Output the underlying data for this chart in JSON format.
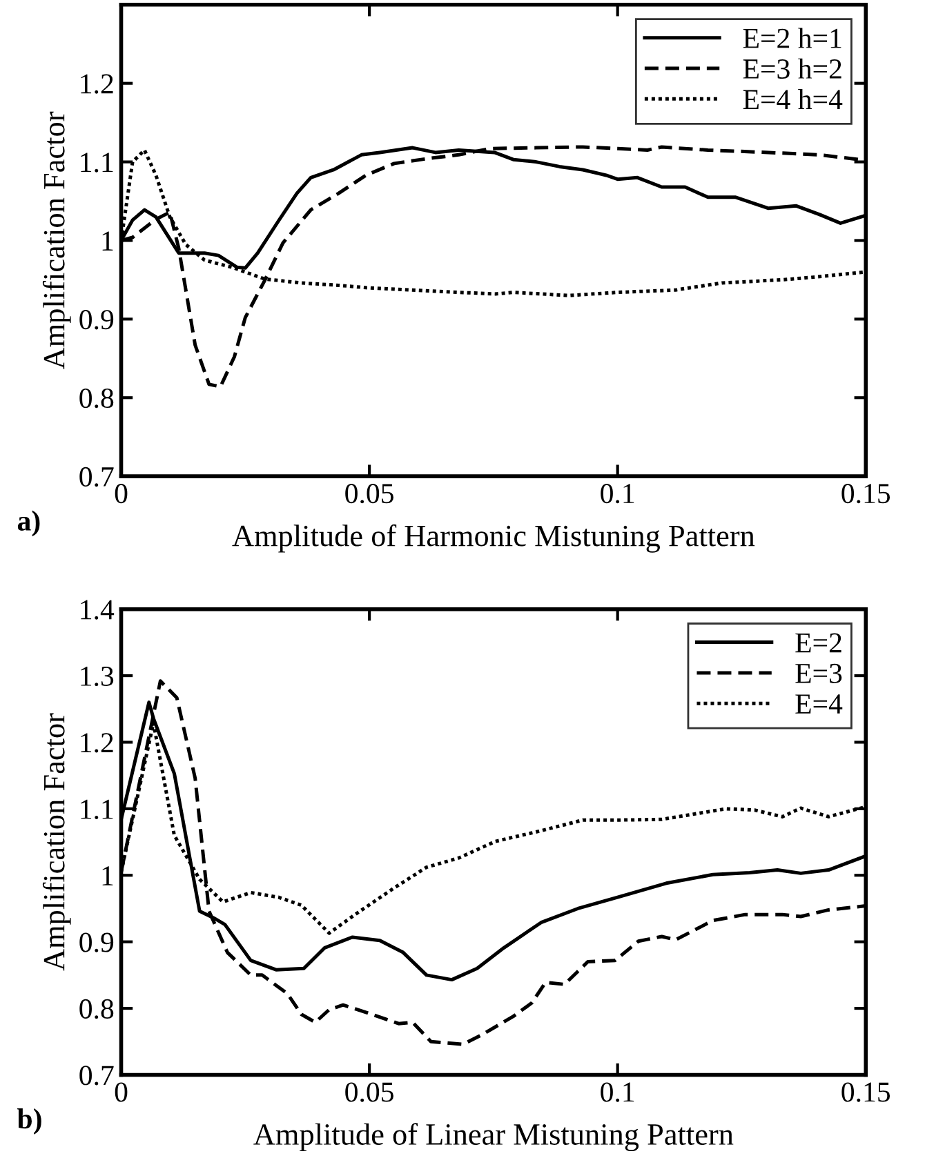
{
  "chart_data": [
    {
      "type": "line",
      "xlabel": "Amplitude of Harmonic Mistuning Pattern",
      "ylabel": "Amplification Factor",
      "annotations": [
        "a)"
      ],
      "xlim": [
        0,
        0.15
      ],
      "xticks": [
        0,
        0.05,
        0.1,
        0.15
      ],
      "ylim": [
        0.7,
        1.3
      ],
      "yticks": [
        0.7,
        0.8,
        0.9,
        1,
        1.1,
        1.2
      ],
      "legend": "top right",
      "grid": false,
      "series": [
        {
          "name": "E=2 h=1",
          "color": "#000000",
          "line_style": "solid",
          "x": [
            0,
            0.0023,
            0.0047,
            0.007,
            0.0116,
            0.0168,
            0.0196,
            0.0233,
            0.025,
            0.0275,
            0.0317,
            0.0354,
            0.0382,
            0.0428,
            0.0484,
            0.0521,
            0.0587,
            0.0633,
            0.068,
            0.0752,
            0.079,
            0.0836,
            0.0883,
            0.093,
            0.0977,
            0.1,
            0.104,
            0.1089,
            0.1136,
            0.1182,
            0.1238,
            0.1304,
            0.136,
            0.1407,
            0.1449,
            0.15
          ],
          "values": [
            1.0,
            1.026,
            1.039,
            1.03,
            0.984,
            0.984,
            0.981,
            0.966,
            0.965,
            0.984,
            1.025,
            1.06,
            1.08,
            1.09,
            1.109,
            1.112,
            1.118,
            1.112,
            1.115,
            1.112,
            1.103,
            1.1,
            1.094,
            1.09,
            1.083,
            1.078,
            1.08,
            1.068,
            1.068,
            1.055,
            1.055,
            1.041,
            1.044,
            1.033,
            1.022,
            1.032
          ]
        },
        {
          "name": "E=3 h=2",
          "color": "#000000",
          "line_style": "dashed",
          "x": [
            0,
            0.0023,
            0.007,
            0.0098,
            0.0116,
            0.0149,
            0.0177,
            0.02,
            0.0228,
            0.025,
            0.0289,
            0.0326,
            0.0382,
            0.0438,
            0.0493,
            0.055,
            0.0615,
            0.068,
            0.0743,
            0.0836,
            0.093,
            0.1,
            0.106,
            0.1089,
            0.1182,
            0.1304,
            0.1407,
            0.15
          ],
          "values": [
            1.0,
            1.004,
            1.027,
            1.036,
            0.99,
            0.867,
            0.817,
            0.814,
            0.852,
            0.902,
            0.949,
            0.997,
            1.039,
            1.06,
            1.083,
            1.098,
            1.104,
            1.109,
            1.117,
            1.118,
            1.119,
            1.117,
            1.115,
            1.119,
            1.115,
            1.112,
            1.109,
            1.102
          ]
        },
        {
          "name": "E=4 h=4",
          "color": "#000000",
          "line_style": "dotted",
          "x": [
            0,
            0.0023,
            0.0047,
            0.007,
            0.0098,
            0.013,
            0.0168,
            0.0223,
            0.0289,
            0.0363,
            0.0438,
            0.0493,
            0.0587,
            0.068,
            0.0754,
            0.079,
            0.0902,
            0.1,
            0.1117,
            0.121,
            0.1332,
            0.1407,
            0.15
          ],
          "values": [
            1.0,
            1.1,
            1.115,
            1.083,
            1.03,
            0.995,
            0.975,
            0.966,
            0.951,
            0.946,
            0.943,
            0.94,
            0.937,
            0.934,
            0.932,
            0.934,
            0.93,
            0.934,
            0.937,
            0.946,
            0.95,
            0.954,
            0.96
          ]
        }
      ]
    },
    {
      "type": "line",
      "xlabel": "Amplitude of Linear Mistuning Pattern",
      "ylabel": "Amplification Factor",
      "annotations": [
        "b)"
      ],
      "xlim": [
        0,
        0.15
      ],
      "xticks": [
        0,
        0.05,
        0.1,
        0.15
      ],
      "ylim": [
        0.7,
        1.4
      ],
      "yticks": [
        0.7,
        0.8,
        0.9,
        1,
        1.1,
        1.2,
        1.3,
        1.4
      ],
      "legend": "top right",
      "grid": false,
      "series": [
        {
          "name": "E=2",
          "color": "#000000",
          "line_style": "solid",
          "x": [
            0,
            0.0056,
            0.0065,
            0.0107,
            0.0158,
            0.0186,
            0.0209,
            0.0261,
            0.0312,
            0.0368,
            0.041,
            0.0466,
            0.0521,
            0.0568,
            0.0615,
            0.0666,
            0.0717,
            0.0771,
            0.0846,
            0.092,
            0.1,
            0.1098,
            0.1192,
            0.1266,
            0.1322,
            0.1369,
            0.1425,
            0.15
          ],
          "values": [
            1.084,
            1.26,
            1.236,
            1.153,
            0.946,
            0.936,
            0.926,
            0.872,
            0.858,
            0.86,
            0.891,
            0.907,
            0.902,
            0.884,
            0.85,
            0.843,
            0.86,
            0.891,
            0.929,
            0.95,
            0.967,
            0.988,
            1.001,
            1.004,
            1.008,
            1.003,
            1.008,
            1.029
          ]
        },
        {
          "name": "E=3",
          "color": "#000000",
          "line_style": "dashed",
          "x": [
            0,
            0.0079,
            0.0112,
            0.0149,
            0.0177,
            0.0214,
            0.0261,
            0.0284,
            0.0335,
            0.0363,
            0.0391,
            0.0419,
            0.0447,
            0.0493,
            0.0559,
            0.0587,
            0.0624,
            0.0689,
            0.0726,
            0.079,
            0.0827,
            0.0855,
            0.0893,
            0.094,
            0.0995,
            0.1042,
            0.1089,
            0.1117,
            0.1192,
            0.1257,
            0.1332,
            0.1369,
            0.1425,
            0.15
          ],
          "values": [
            1.005,
            1.292,
            1.267,
            1.146,
            0.946,
            0.884,
            0.85,
            0.85,
            0.822,
            0.791,
            0.779,
            0.798,
            0.805,
            0.794,
            0.777,
            0.779,
            0.75,
            0.746,
            0.76,
            0.788,
            0.808,
            0.839,
            0.836,
            0.87,
            0.872,
            0.901,
            0.908,
            0.903,
            0.932,
            0.941,
            0.941,
            0.938,
            0.948,
            0.954
          ]
        },
        {
          "name": "E=4",
          "color": "#000000",
          "line_style": "dotted",
          "x": [
            0,
            0.0065,
            0.0107,
            0.0158,
            0.0205,
            0.0261,
            0.0317,
            0.0363,
            0.0419,
            0.0475,
            0.055,
            0.0615,
            0.068,
            0.0754,
            0.0846,
            0.093,
            0.1,
            0.1089,
            0.1219,
            0.1276,
            0.1332,
            0.1369,
            0.1425,
            0.15
          ],
          "values": [
            1.005,
            1.229,
            1.06,
            0.994,
            0.96,
            0.974,
            0.967,
            0.955,
            0.913,
            0.943,
            0.981,
            1.012,
            1.026,
            1.051,
            1.067,
            1.083,
            1.083,
            1.084,
            1.1,
            1.098,
            1.088,
            1.101,
            1.088,
            1.103
          ]
        }
      ]
    }
  ]
}
